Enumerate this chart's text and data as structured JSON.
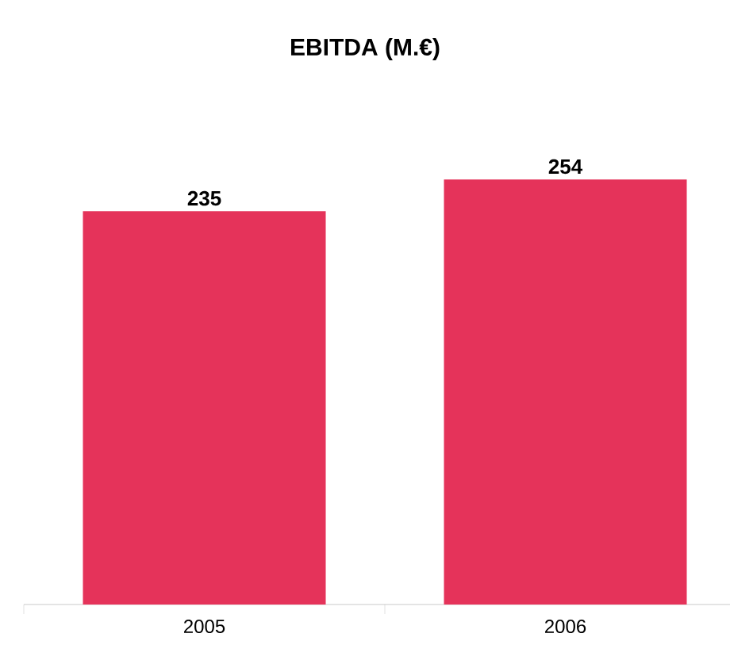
{
  "chart_data": {
    "type": "bar",
    "title": "EBITDA (M.€)",
    "categories": [
      "2005",
      "2006"
    ],
    "values": [
      235,
      254
    ],
    "color": "#e5335a",
    "data_labels": true
  }
}
